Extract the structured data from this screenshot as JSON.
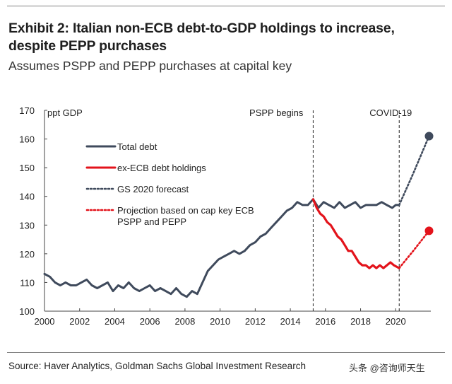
{
  "header": {
    "title_line1": "Exhibit 2: Italian non-ECB debt-to-GDP holdings to increase,",
    "title_line2": "despite PEPP purchases",
    "subtitle": "Assumes PSPP and PEPP purchases at capital key"
  },
  "footer": {
    "source": "Source: Haver Analytics, Goldman Sachs Global Investment Research",
    "watermark": "头条 @咨询师天生"
  },
  "colors": {
    "total_debt": "#3f4a5c",
    "ex_ecb": "#e3131b",
    "text": "#222222"
  },
  "chart_data": {
    "type": "line",
    "ylabel": "ppt GDP",
    "xlim": [
      2000,
      2022
    ],
    "ylim": [
      100,
      170
    ],
    "x_ticks": [
      2000,
      2002,
      2004,
      2006,
      2008,
      2010,
      2012,
      2014,
      2016,
      2018,
      2020
    ],
    "x_tick_labels": [
      "2000",
      "2002",
      "2004",
      "2006",
      "2008",
      "2010",
      "2012",
      "2014",
      "2016",
      "2018",
      "2020"
    ],
    "y_ticks": [
      100,
      110,
      120,
      130,
      140,
      150,
      160,
      170
    ],
    "y_tick_labels": [
      "100",
      "110",
      "120",
      "130",
      "140",
      "150",
      "160",
      "170"
    ],
    "grid": false,
    "legend_position": "top-left",
    "legend": [
      {
        "label": "Total debt",
        "style": "solid-dark"
      },
      {
        "label": "ex-ECB debt holdings",
        "style": "solid-red"
      },
      {
        "label": "GS 2020 forecast",
        "style": "dotted-dark"
      },
      {
        "label": "Projection based on cap key ECB PSPP and PEPP",
        "style": "dotted-red"
      }
    ],
    "annotations": [
      {
        "text": "PSPP begins",
        "x": 2015.3
      },
      {
        "text": "COVID-19",
        "x": 2020.2
      }
    ],
    "series": [
      {
        "name": "Total debt",
        "x": [
          2000.0,
          2000.3,
          2000.6,
          2000.9,
          2001.2,
          2001.5,
          2001.8,
          2002.1,
          2002.4,
          2002.7,
          2003.0,
          2003.3,
          2003.6,
          2003.9,
          2004.2,
          2004.5,
          2004.8,
          2005.1,
          2005.4,
          2005.7,
          2006.0,
          2006.3,
          2006.6,
          2006.9,
          2007.2,
          2007.5,
          2007.8,
          2008.1,
          2008.4,
          2008.7,
          2009.0,
          2009.3,
          2009.6,
          2009.9,
          2010.2,
          2010.5,
          2010.8,
          2011.1,
          2011.4,
          2011.7,
          2012.0,
          2012.3,
          2012.6,
          2012.9,
          2013.2,
          2013.5,
          2013.8,
          2014.1,
          2014.4,
          2014.7,
          2015.0,
          2015.3,
          2015.6,
          2015.9,
          2016.2,
          2016.5,
          2016.8,
          2017.1,
          2017.4,
          2017.7,
          2018.0,
          2018.3,
          2018.6,
          2018.9,
          2019.2,
          2019.5,
          2019.8,
          2020.0,
          2020.2
        ],
        "values": [
          113,
          112,
          110,
          109,
          110,
          109,
          109,
          110,
          111,
          109,
          108,
          109,
          110,
          107,
          109,
          108,
          110,
          108,
          107,
          108,
          109,
          107,
          108,
          107,
          106,
          108,
          106,
          105,
          107,
          106,
          110,
          114,
          116,
          118,
          119,
          120,
          121,
          120,
          121,
          123,
          124,
          126,
          127,
          129,
          131,
          133,
          135,
          136,
          138,
          137,
          137,
          139,
          136,
          138,
          137,
          136,
          138,
          136,
          137,
          138,
          136,
          137,
          137,
          137,
          138,
          137,
          136,
          137,
          137
        ]
      },
      {
        "name": "ex-ECB debt holdings",
        "x": [
          2015.3,
          2015.5,
          2015.7,
          2015.9,
          2016.1,
          2016.3,
          2016.5,
          2016.7,
          2016.9,
          2017.1,
          2017.3,
          2017.5,
          2017.7,
          2017.9,
          2018.1,
          2018.3,
          2018.5,
          2018.7,
          2018.9,
          2019.1,
          2019.3,
          2019.5,
          2019.7,
          2019.9,
          2020.2
        ],
        "values": [
          139,
          136,
          134,
          133,
          131,
          130,
          128,
          126,
          125,
          123,
          121,
          121,
          119,
          117,
          116,
          116,
          115,
          116,
          115,
          116,
          115,
          116,
          117,
          116,
          115
        ]
      },
      {
        "name": "GS 2020 forecast",
        "x": [
          2020.2,
          2021.0,
          2021.9
        ],
        "values": [
          137,
          148,
          161
        ]
      },
      {
        "name": "Projection based on cap key ECB PSPP and PEPP",
        "x": [
          2020.2,
          2021.0,
          2021.9
        ],
        "values": [
          115,
          121,
          128
        ]
      }
    ]
  }
}
